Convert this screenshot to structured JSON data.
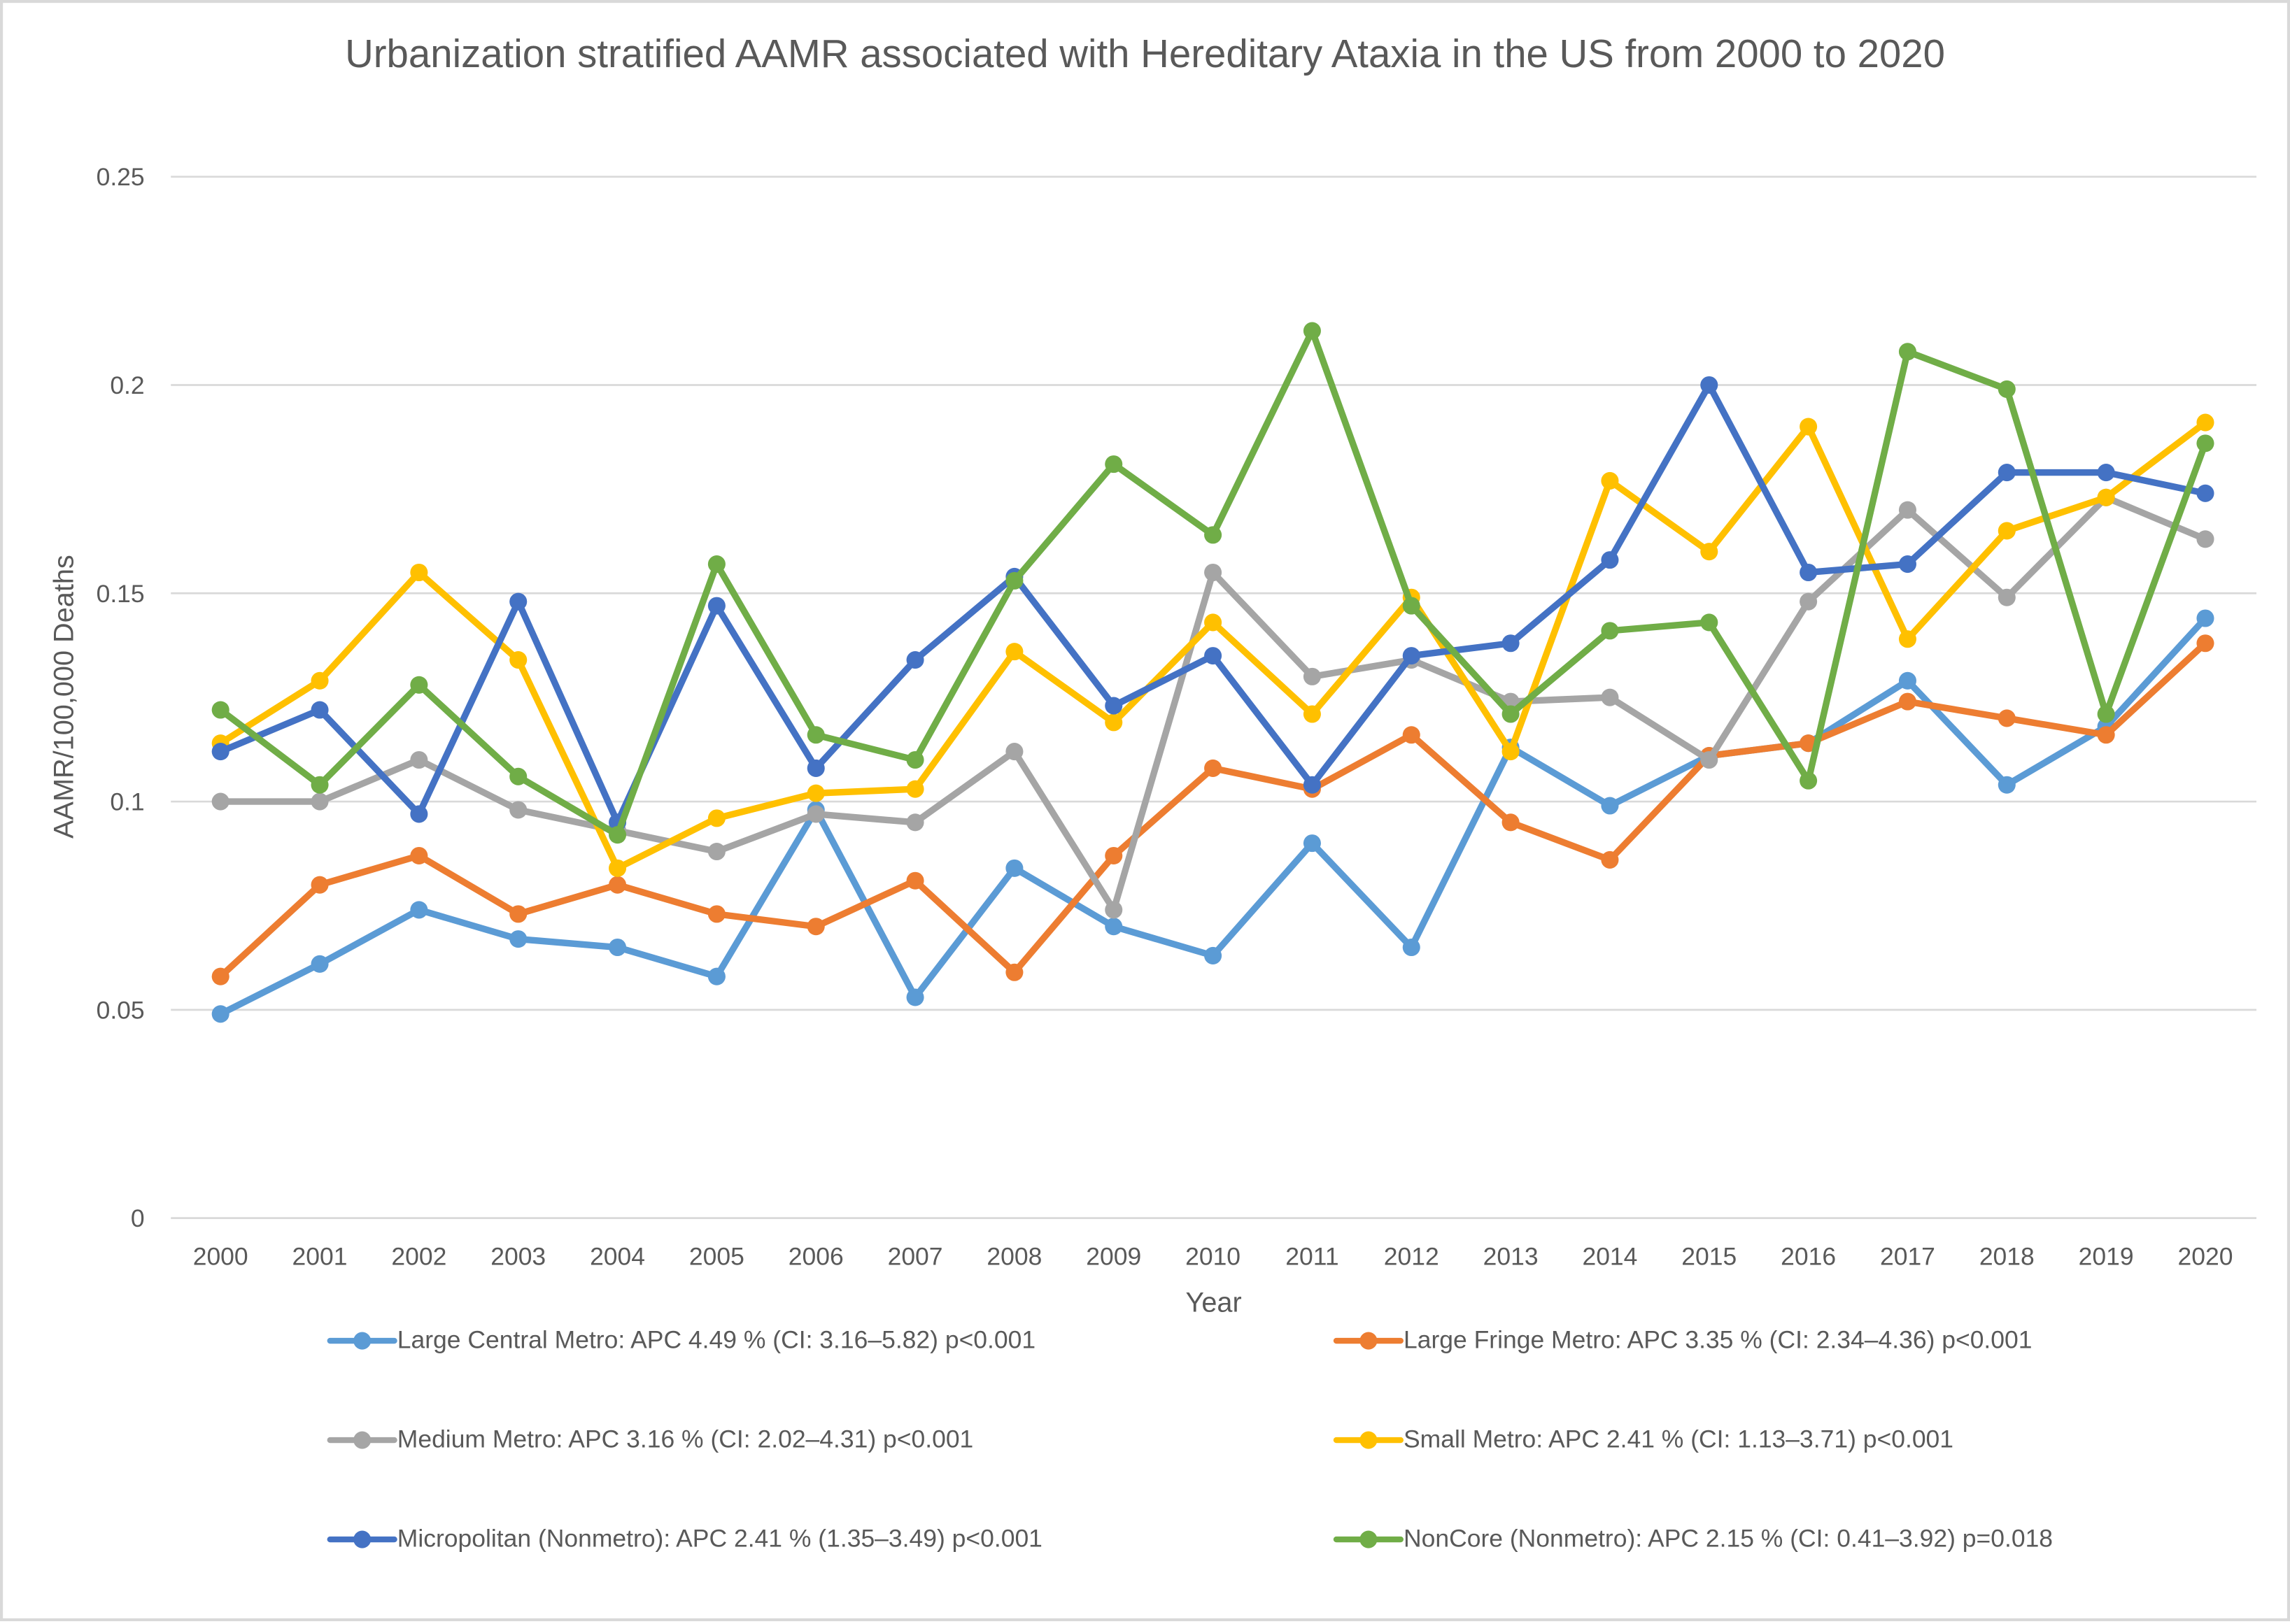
{
  "chart_data": {
    "type": "line",
    "title": "Urbanization stratified AAMR associated with Hereditary Ataxia in the US from 2000 to 2020",
    "xlabel": "Year",
    "ylabel": "AAMR/100,000 Deaths",
    "ylim": [
      0,
      0.25
    ],
    "yticks": [
      "0",
      "0.05",
      "0.1",
      "0.15",
      "0.2",
      "0.25"
    ],
    "ytick_values": [
      0,
      0.05,
      0.1,
      0.15,
      0.2,
      0.25
    ],
    "grid": true,
    "legend_position": "bottom",
    "x": [
      "2000",
      "2001",
      "2002",
      "2003",
      "2004",
      "2005",
      "2006",
      "2007",
      "2008",
      "2009",
      "2010",
      "2011",
      "2012",
      "2013",
      "2014",
      "2015",
      "2016",
      "2017",
      "2018",
      "2019",
      "2020"
    ],
    "series": [
      {
        "name": "Large Central Metro: APC 4.49 % (CI: 3.16–5.82) p<0.001",
        "color": "#5b9bd5",
        "values": [
          0.049,
          0.061,
          0.074,
          0.067,
          0.065,
          0.058,
          0.098,
          0.053,
          0.084,
          0.07,
          0.063,
          0.09,
          0.065,
          0.113,
          0.099,
          0.111,
          0.114,
          0.129,
          0.104,
          0.118,
          0.144
        ]
      },
      {
        "name": "Large Fringe Metro: APC 3.35 % (CI: 2.34–4.36) p<0.001",
        "color": "#ed7d31",
        "values": [
          0.058,
          0.08,
          0.087,
          0.073,
          0.08,
          0.073,
          0.07,
          0.081,
          0.059,
          0.087,
          0.108,
          0.103,
          0.116,
          0.095,
          0.086,
          0.111,
          0.114,
          0.124,
          0.12,
          0.116,
          0.138
        ]
      },
      {
        "name": "Medium Metro: APC 3.16 % (CI: 2.02–4.31) p<0.001",
        "color": "#a5a5a5",
        "values": [
          0.1,
          0.1,
          0.11,
          0.098,
          0.093,
          0.088,
          0.097,
          0.095,
          0.112,
          0.074,
          0.155,
          0.13,
          0.134,
          0.124,
          0.125,
          0.11,
          0.148,
          0.17,
          0.149,
          0.173,
          0.163
        ]
      },
      {
        "name": "Small Metro: APC 2.41 % (CI: 1.13–3.71) p<0.001",
        "color": "#ffc000",
        "values": [
          0.114,
          0.129,
          0.155,
          0.134,
          0.084,
          0.096,
          0.102,
          0.103,
          0.136,
          0.119,
          0.143,
          0.121,
          0.149,
          0.112,
          0.177,
          0.16,
          0.19,
          0.139,
          0.165,
          0.173,
          0.191
        ]
      },
      {
        "name": "Micropolitan (Nonmetro): APC 2.41 % (1.35–3.49) p<0.001",
        "color": "#4472c4",
        "values": [
          0.112,
          0.122,
          0.097,
          0.148,
          0.095,
          0.147,
          0.108,
          0.134,
          0.154,
          0.123,
          0.135,
          0.104,
          0.135,
          0.138,
          0.158,
          0.2,
          0.155,
          0.157,
          0.179,
          0.179,
          0.174
        ]
      },
      {
        "name": "NonCore (Nonmetro): APC 2.15 % (CI: 0.41–3.92) p=0.018",
        "color": "#70ad47",
        "values": [
          0.122,
          0.104,
          0.128,
          0.106,
          0.092,
          0.157,
          0.116,
          0.11,
          0.153,
          0.181,
          0.164,
          0.213,
          0.147,
          0.121,
          0.141,
          0.143,
          0.105,
          0.208,
          0.199,
          0.121,
          0.186
        ]
      }
    ]
  }
}
